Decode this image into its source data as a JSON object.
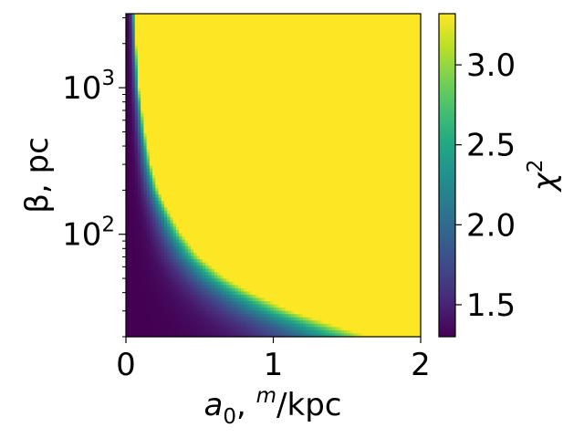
{
  "chart_data": {
    "type": "heatmap",
    "title": "",
    "x": {
      "quantity": "a",
      "subscript": "0",
      "unit_superscript": "m",
      "unit_rest": "/kpc",
      "lim": [
        0,
        2
      ],
      "scale": "linear",
      "ticks": [
        0,
        1,
        2
      ],
      "tick_labels": [
        "0",
        "1",
        "2"
      ]
    },
    "y": {
      "label": "β, pc",
      "lim": [
        20,
        3200
      ],
      "scale": "log",
      "major_ticks": [
        100,
        1000
      ],
      "tick_base": "10",
      "tick_exponents": [
        "2",
        "3"
      ]
    },
    "colorbar": {
      "quantity": "χ",
      "superscript": "2",
      "colormap": "viridis",
      "range": [
        1.3,
        3.32
      ],
      "ticks": [
        1.5,
        2.0,
        2.5,
        3.0
      ],
      "tick_labels": [
        "1.5",
        "2.0",
        "2.5",
        "3.0"
      ]
    },
    "boundary_curve": {
      "description_values": "approximate x position (in a0 units) where chi2 reaches its maximum, as a function of beta (pc)",
      "beta": [
        20,
        25,
        30,
        40,
        50,
        70,
        100,
        150,
        200,
        300,
        500,
        1000,
        2000,
        3200
      ],
      "a0": [
        1.65,
        1.35,
        1.12,
        0.85,
        0.68,
        0.5,
        0.38,
        0.28,
        0.22,
        0.17,
        0.13,
        0.09,
        0.07,
        0.06
      ]
    },
    "saturated_value": 3.32,
    "minimum_value": 1.3
  }
}
